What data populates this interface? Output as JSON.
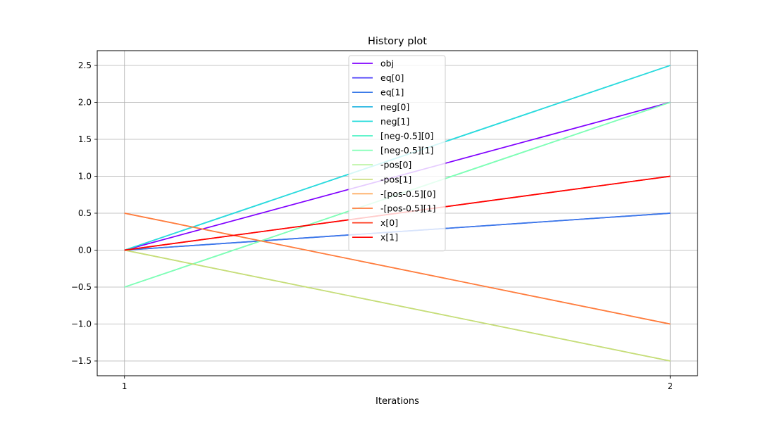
{
  "chart_data": {
    "type": "line",
    "title": "History plot",
    "xlabel": "Iterations",
    "ylabel": "",
    "x": [
      1,
      2
    ],
    "xticks": [
      "1",
      "2"
    ],
    "xlim": [
      0.95,
      2.05
    ],
    "ylim": [
      -1.7,
      2.7
    ],
    "yticks": [
      -1.5,
      -1.0,
      -0.5,
      0.0,
      0.5,
      1.0,
      1.5,
      2.0,
      2.5
    ],
    "ytick_labels": [
      "−1.5",
      "−1.0",
      "−0.5",
      "0.0",
      "0.5",
      "1.0",
      "1.5",
      "2.0",
      "2.5"
    ],
    "grid": true,
    "legend_placement": "upper-center",
    "series": [
      {
        "name": "obj",
        "values": [
          0,
          2
        ],
        "color": "#8000ff"
      },
      {
        "name": "eq[0]",
        "values": [
          0,
          0.5
        ],
        "color": "#4a3cf9"
      },
      {
        "name": "eq[1]",
        "values": [
          0,
          0.5
        ],
        "color": "#3a7ae8"
      },
      {
        "name": "neg[0]",
        "values": [
          0,
          2.5
        ],
        "color": "#1ab2e0"
      },
      {
        "name": "neg[1]",
        "values": [
          0,
          2.5
        ],
        "color": "#2adddd"
      },
      {
        "name": "[neg-0.5][0]",
        "values": [
          -0.5,
          2.0
        ],
        "color": "#4cf2c4"
      },
      {
        "name": "[neg-0.5][1]",
        "values": [
          -0.5,
          2.0
        ],
        "color": "#80ffb4"
      },
      {
        "name": "-pos[0]",
        "values": [
          0,
          -1.5
        ],
        "color": "#b2f296"
      },
      {
        "name": "-pos[1]",
        "values": [
          0,
          -1.5
        ],
        "color": "#c8dc78"
      },
      {
        "name": "-[pos-0.5][0]",
        "values": [
          0.5,
          -1.0
        ],
        "color": "#ffaa5e"
      },
      {
        "name": "-[pos-0.5][1]",
        "values": [
          0.5,
          -1.0
        ],
        "color": "#ff7b3e"
      },
      {
        "name": "x[0]",
        "values": [
          0,
          1.0
        ],
        "color": "#ff3a1e"
      },
      {
        "name": "x[1]",
        "values": [
          0,
          1.0
        ],
        "color": "#ff0000"
      }
    ]
  }
}
